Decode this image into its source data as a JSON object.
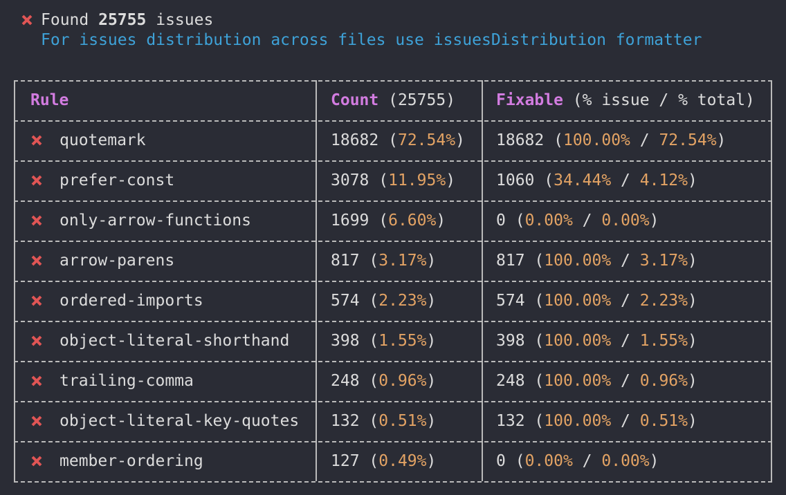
{
  "summary": {
    "found": "Found",
    "count": 25755,
    "issues": "issues",
    "hint": "For issues distribution across files use issuesDistribution formatter"
  },
  "table": {
    "headers": {
      "rule": "Rule",
      "count": "Count",
      "count_total": "(25755)",
      "fixable": "Fixable",
      "fixable_note": "(% issue / % total)"
    },
    "rows": [
      [
        "quotemark",
        18682,
        "72.54%",
        18682,
        "100.00%",
        "72.54%"
      ],
      [
        "prefer-const",
        3078,
        "11.95%",
        1060,
        "34.44%",
        "4.12%"
      ],
      [
        "only-arrow-functions",
        1699,
        "6.60%",
        0,
        "0.00%",
        "0.00%"
      ],
      [
        "arrow-parens",
        817,
        "3.17%",
        817,
        "100.00%",
        "3.17%"
      ],
      [
        "ordered-imports",
        574,
        "2.23%",
        574,
        "100.00%",
        "2.23%"
      ],
      [
        "object-literal-shorthand",
        398,
        "1.55%",
        398,
        "100.00%",
        "1.55%"
      ],
      [
        "trailing-comma",
        248,
        "0.96%",
        248,
        "100.00%",
        "0.96%"
      ],
      [
        "object-literal-key-quotes",
        132,
        "0.51%",
        132,
        "100.00%",
        "0.51%"
      ],
      [
        "member-ordering",
        127,
        "0.49%",
        0,
        "0.00%",
        "0.00%"
      ]
    ]
  }
}
